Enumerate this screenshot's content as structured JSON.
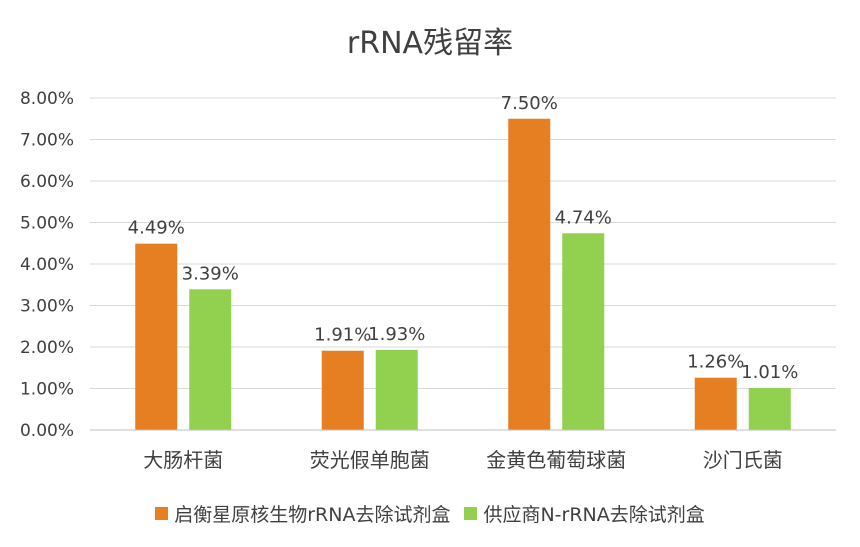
{
  "chart_data": {
    "type": "bar",
    "title": "rRNA残留率",
    "categories": [
      "大肠杆菌",
      "荧光假单胞菌",
      "金黄色葡萄球菌",
      "沙门氏菌"
    ],
    "series": [
      {
        "name": "启衡星原核生物rRNA去除试剂盒",
        "values": [
          4.49,
          1.91,
          7.5,
          1.26
        ],
        "labels": [
          "4.49%",
          "1.91%",
          "7.50%",
          "1.26%"
        ],
        "color": "#E67E22"
      },
      {
        "name": "供应商N-rRNA去除试剂盒",
        "values": [
          3.39,
          1.93,
          4.74,
          1.01
        ],
        "labels": [
          "3.39%",
          "1.93%",
          "4.74%",
          "1.01%"
        ],
        "color": "#92D050"
      }
    ],
    "ylim": [
      0,
      8
    ],
    "yticks": [
      0,
      1,
      2,
      3,
      4,
      5,
      6,
      7,
      8
    ],
    "ytick_labels": [
      "0.00%",
      "1.00%",
      "2.00%",
      "3.00%",
      "4.00%",
      "5.00%",
      "6.00%",
      "7.00%",
      "8.00%"
    ],
    "grid": true,
    "legend_position": "bottom"
  }
}
